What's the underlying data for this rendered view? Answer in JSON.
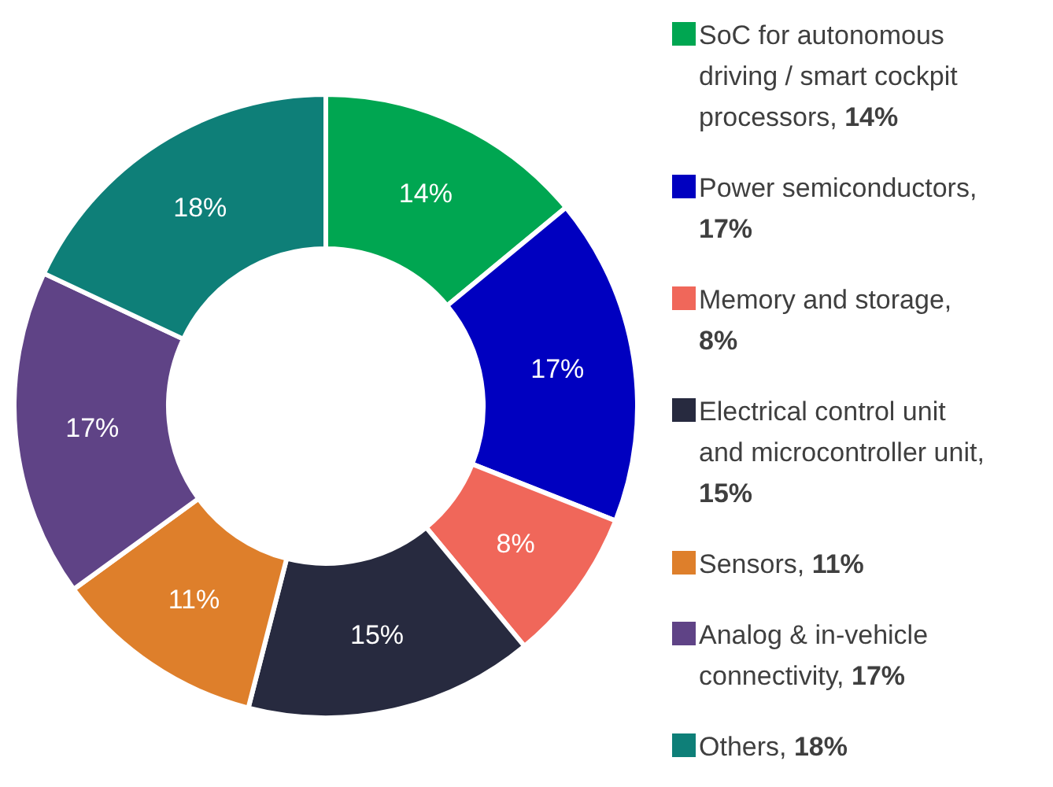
{
  "chart_data": {
    "type": "donut",
    "categories": [
      "SoC for autonomous driving / smart cockpit processors",
      "Power semiconductors",
      "Memory and storage",
      "Electrical control unit and microcontroller unit",
      "Sensors",
      "Analog & in-vehicle connectivity",
      "Others"
    ],
    "values": [
      14,
      17,
      8,
      15,
      11,
      17,
      18
    ],
    "value_labels": [
      "14%",
      "17%",
      "8%",
      "15%",
      "11%",
      "17%",
      "18%"
    ],
    "colors": [
      "#00a651",
      "#0000c0",
      "#f0675a",
      "#272a3f",
      "#de7f2b",
      "#5f4386",
      "#0e7f78"
    ],
    "legend": "right"
  }
}
